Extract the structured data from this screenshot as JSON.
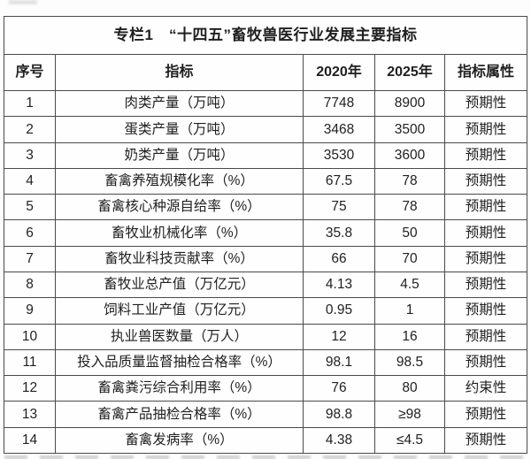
{
  "table": {
    "title": "专栏1　“十四五”畜牧兽医行业发展主要指标",
    "columns": [
      "序号",
      "指标",
      "2020年",
      "2025年",
      "指标属性"
    ],
    "rows": [
      [
        "1",
        "肉类产量（万吨）",
        "7748",
        "8900",
        "预期性"
      ],
      [
        "2",
        "蛋类产量（万吨）",
        "3468",
        "3500",
        "预期性"
      ],
      [
        "3",
        "奶类产量（万吨）",
        "3530",
        "3600",
        "预期性"
      ],
      [
        "4",
        "畜禽养殖规模化率（%）",
        "67.5",
        "78",
        "预期性"
      ],
      [
        "5",
        "畜禽核心种源自给率（%）",
        "75",
        "78",
        "预期性"
      ],
      [
        "6",
        "畜牧业机械化率（%）",
        "35.8",
        "50",
        "预期性"
      ],
      [
        "7",
        "畜牧业科技贡献率（%）",
        "66",
        "70",
        "预期性"
      ],
      [
        "8",
        "畜牧业总产值（万亿元）",
        "4.13",
        "4.5",
        "预期性"
      ],
      [
        "9",
        "饲料工业产值（万亿元）",
        "0.95",
        "1",
        "预期性"
      ],
      [
        "10",
        "执业兽医数量（万人）",
        "12",
        "16",
        "预期性"
      ],
      [
        "11",
        "投入品质量监督抽检合格率（%）",
        "98.1",
        "98.5",
        "预期性"
      ],
      [
        "12",
        "畜禽粪污综合利用率（%）",
        "76",
        "80",
        "约束性"
      ],
      [
        "13",
        "畜禽产品抽检合格率（%）",
        "98.8",
        "≥98",
        "预期性"
      ],
      [
        "14",
        "畜禽发病率（%）",
        "4.38",
        "≤4.5",
        "预期性"
      ]
    ]
  },
  "colors": {
    "border": "#4a4a4a",
    "text": "#1f1f1f",
    "background": "#fdfdfd"
  }
}
